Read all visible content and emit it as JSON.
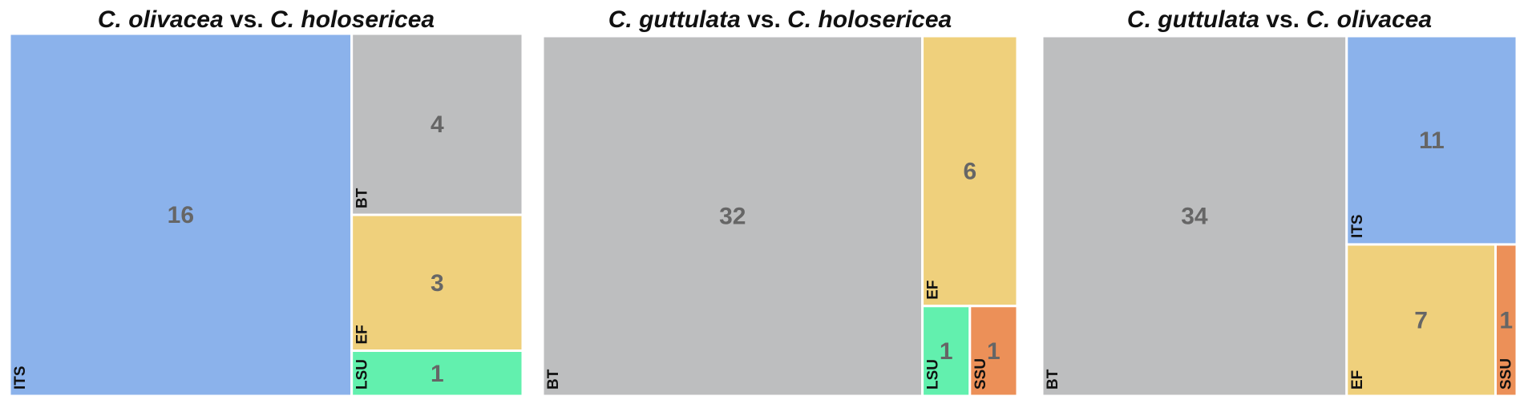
{
  "colors": {
    "ITS": "#8bb2eb",
    "BT": "#bdbebf",
    "EF": "#efd07c",
    "LSU": "#62f0ae",
    "SSU": "#ec9058"
  },
  "chart_data": [
    {
      "type": "treemap",
      "title_parts": [
        {
          "text": "C. olivacea",
          "italic": true
        },
        {
          "text": " vs. ",
          "italic": false
        },
        {
          "text": "C. holosericea",
          "italic": true
        }
      ],
      "tiles": [
        {
          "gene": "ITS",
          "value": 16
        },
        {
          "gene": "BT",
          "value": 4
        },
        {
          "gene": "EF",
          "value": 3
        },
        {
          "gene": "LSU",
          "value": 1
        }
      ]
    },
    {
      "type": "treemap",
      "title_parts": [
        {
          "text": "C. guttulata",
          "italic": true
        },
        {
          "text": " vs. ",
          "italic": false
        },
        {
          "text": "C. holosericea",
          "italic": true
        }
      ],
      "tiles": [
        {
          "gene": "BT",
          "value": 32
        },
        {
          "gene": "EF",
          "value": 6
        },
        {
          "gene": "LSU",
          "value": 1
        },
        {
          "gene": "SSU",
          "value": 1
        }
      ]
    },
    {
      "type": "treemap",
      "title_parts": [
        {
          "text": "C. guttulata",
          "italic": true
        },
        {
          "text": " vs. ",
          "italic": false
        },
        {
          "text": "C. olivacea",
          "italic": true
        }
      ],
      "tiles": [
        {
          "gene": "BT",
          "value": 34
        },
        {
          "gene": "ITS",
          "value": 11
        },
        {
          "gene": "EF",
          "value": 7
        },
        {
          "gene": "SSU",
          "value": 1
        }
      ]
    }
  ]
}
